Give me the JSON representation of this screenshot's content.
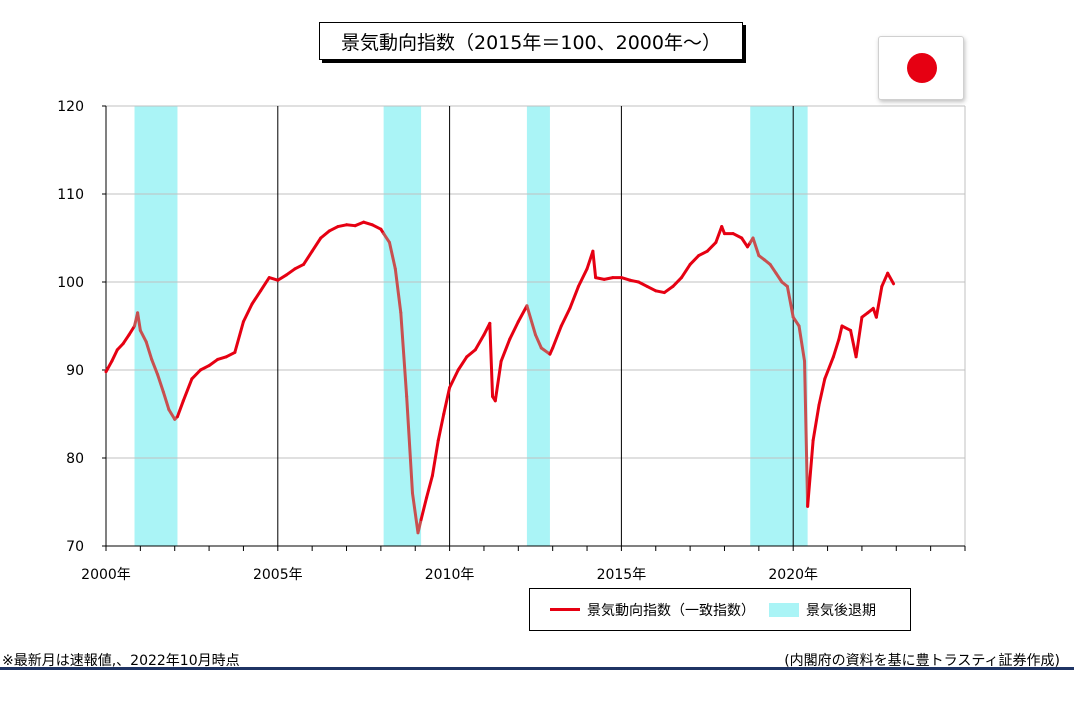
{
  "title": "景気動向指数（2015年＝100、2000年～）",
  "flag_icon": "japan-flag-icon",
  "colors": {
    "line_expansion": "#e60012",
    "line_recession": "#c85050",
    "recession_band": "#aaf4f6",
    "grid": "#c0c0c0"
  },
  "legend": {
    "line_label": "景気動向指数（一致指数）",
    "band_label": "景気後退期"
  },
  "note_left": "※最新月は速報値,、2022年10月時点",
  "note_right": "(内閣府の資料を基に豊トラスティ証券作成)",
  "chart_data": {
    "type": "line",
    "xlabel": "",
    "ylabel": "",
    "xlim": [
      2000.0,
      2025.0
    ],
    "ylim": [
      70,
      120
    ],
    "yticks": [
      "70",
      "80",
      "90",
      "100",
      "110",
      "120"
    ],
    "xticks": [
      {
        "value": 2000,
        "label": "2000年"
      },
      {
        "value": 2005,
        "label": "2005年"
      },
      {
        "value": 2010,
        "label": "2010年"
      },
      {
        "value": 2015,
        "label": "2015年"
      },
      {
        "value": 2020,
        "label": "2020年"
      }
    ],
    "vertical_lines": [
      2005,
      2010,
      2015,
      2020
    ],
    "recession_periods": [
      [
        2000.83,
        2002.08
      ],
      [
        2008.08,
        2009.17
      ],
      [
        2012.25,
        2012.92
      ],
      [
        2018.75,
        2020.42
      ]
    ],
    "series": [
      {
        "name": "景気動向指数（一致指数）",
        "points": [
          [
            2000.0,
            89.8
          ],
          [
            2000.17,
            91.0
          ],
          [
            2000.33,
            92.3
          ],
          [
            2000.5,
            93.0
          ],
          [
            2000.67,
            94.0
          ],
          [
            2000.83,
            95.0
          ],
          [
            2000.92,
            96.5
          ],
          [
            2001.0,
            94.5
          ],
          [
            2001.17,
            93.2
          ],
          [
            2001.33,
            91.2
          ],
          [
            2001.5,
            89.5
          ],
          [
            2001.67,
            87.5
          ],
          [
            2001.83,
            85.5
          ],
          [
            2002.0,
            84.4
          ],
          [
            2002.08,
            84.7
          ],
          [
            2002.25,
            86.5
          ],
          [
            2002.5,
            89.0
          ],
          [
            2002.75,
            90.0
          ],
          [
            2003.0,
            90.5
          ],
          [
            2003.25,
            91.2
          ],
          [
            2003.5,
            91.5
          ],
          [
            2003.75,
            92.0
          ],
          [
            2004.0,
            95.5
          ],
          [
            2004.25,
            97.5
          ],
          [
            2004.5,
            99.0
          ],
          [
            2004.75,
            100.5
          ],
          [
            2005.0,
            100.2
          ],
          [
            2005.25,
            100.8
          ],
          [
            2005.5,
            101.5
          ],
          [
            2005.75,
            102.0
          ],
          [
            2006.0,
            103.5
          ],
          [
            2006.25,
            105.0
          ],
          [
            2006.5,
            105.8
          ],
          [
            2006.75,
            106.3
          ],
          [
            2007.0,
            106.5
          ],
          [
            2007.25,
            106.4
          ],
          [
            2007.5,
            106.8
          ],
          [
            2007.75,
            106.5
          ],
          [
            2008.0,
            106.0
          ],
          [
            2008.08,
            105.5
          ],
          [
            2008.25,
            104.5
          ],
          [
            2008.42,
            101.5
          ],
          [
            2008.58,
            96.5
          ],
          [
            2008.75,
            87.0
          ],
          [
            2008.92,
            76.0
          ],
          [
            2009.08,
            71.5
          ],
          [
            2009.17,
            73.0
          ],
          [
            2009.33,
            75.5
          ],
          [
            2009.5,
            78.0
          ],
          [
            2009.67,
            82.0
          ],
          [
            2009.83,
            85.0
          ],
          [
            2010.0,
            88.0
          ],
          [
            2010.25,
            90.0
          ],
          [
            2010.5,
            91.5
          ],
          [
            2010.75,
            92.3
          ],
          [
            2011.0,
            94.0
          ],
          [
            2011.17,
            95.3
          ],
          [
            2011.25,
            87.0
          ],
          [
            2011.33,
            86.5
          ],
          [
            2011.5,
            91.0
          ],
          [
            2011.75,
            93.5
          ],
          [
            2012.0,
            95.5
          ],
          [
            2012.25,
            97.3
          ],
          [
            2012.5,
            94.0
          ],
          [
            2012.67,
            92.5
          ],
          [
            2012.92,
            91.8
          ],
          [
            2013.0,
            92.5
          ],
          [
            2013.25,
            95.0
          ],
          [
            2013.5,
            97.0
          ],
          [
            2013.75,
            99.5
          ],
          [
            2014.0,
            101.5
          ],
          [
            2014.17,
            103.5
          ],
          [
            2014.25,
            100.5
          ],
          [
            2014.5,
            100.3
          ],
          [
            2014.75,
            100.5
          ],
          [
            2015.0,
            100.5
          ],
          [
            2015.25,
            100.2
          ],
          [
            2015.5,
            100.0
          ],
          [
            2015.75,
            99.5
          ],
          [
            2016.0,
            99.0
          ],
          [
            2016.25,
            98.8
          ],
          [
            2016.5,
            99.5
          ],
          [
            2016.75,
            100.5
          ],
          [
            2017.0,
            102.0
          ],
          [
            2017.25,
            103.0
          ],
          [
            2017.5,
            103.5
          ],
          [
            2017.75,
            104.5
          ],
          [
            2017.92,
            106.3
          ],
          [
            2018.0,
            105.5
          ],
          [
            2018.25,
            105.5
          ],
          [
            2018.5,
            105.0
          ],
          [
            2018.67,
            104.0
          ],
          [
            2018.75,
            104.5
          ],
          [
            2018.83,
            105.0
          ],
          [
            2019.0,
            103.0
          ],
          [
            2019.17,
            102.5
          ],
          [
            2019.33,
            102.0
          ],
          [
            2019.5,
            101.0
          ],
          [
            2019.67,
            100.0
          ],
          [
            2019.83,
            99.5
          ],
          [
            2020.0,
            96.0
          ],
          [
            2020.17,
            95.0
          ],
          [
            2020.33,
            91.0
          ],
          [
            2020.42,
            74.5
          ],
          [
            2020.58,
            82.0
          ],
          [
            2020.75,
            86.0
          ],
          [
            2020.92,
            89.0
          ],
          [
            2021.17,
            91.5
          ],
          [
            2021.33,
            93.5
          ],
          [
            2021.42,
            95.0
          ],
          [
            2021.67,
            94.5
          ],
          [
            2021.83,
            91.5
          ],
          [
            2022.0,
            96.0
          ],
          [
            2022.17,
            96.5
          ],
          [
            2022.33,
            97.0
          ],
          [
            2022.42,
            96.0
          ],
          [
            2022.58,
            99.5
          ],
          [
            2022.75,
            101.0
          ],
          [
            2022.92,
            99.8
          ]
        ]
      }
    ]
  }
}
